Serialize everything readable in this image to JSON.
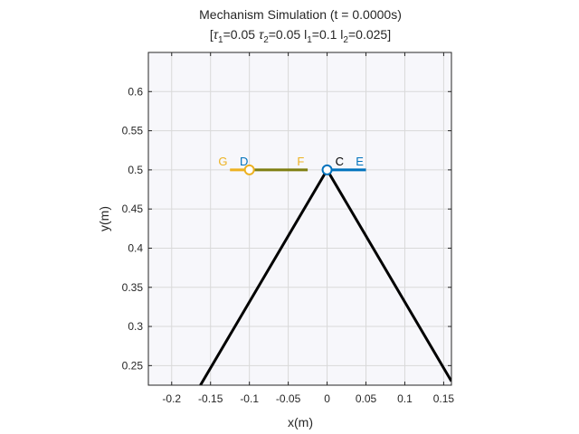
{
  "colors": {
    "link_black": "#000000",
    "link_blue": "#0072BD",
    "link_yellow": "#EDB120",
    "link_olive": "#7E7E10",
    "grid": "#d9d9d9",
    "axis": "#262626",
    "background": "#f7f7fb"
  },
  "chart_data": {
    "type": "line",
    "title": "Mechanism Simulation (t = 0.0000s)",
    "subtitle": {
      "open": "[",
      "tau1_label": "τ",
      "tau1_sub": "1",
      "tau1_val": "=0.05 ",
      "tau2_label": "τ",
      "tau2_sub": "2",
      "tau2_val": "=0.05 ",
      "l1_label": "l",
      "l1_sub": "1",
      "l1_val": "=0.1 ",
      "l2_label": "l",
      "l2_sub": "2",
      "l2_val": "=0.025]"
    },
    "xlabel": "x(m)",
    "ylabel": "y(m)",
    "xlim": [
      -0.23,
      0.16
    ],
    "ylim": [
      0.225,
      0.65
    ],
    "xticks": [
      -0.2,
      -0.15,
      -0.1,
      -0.05,
      0,
      0.05,
      0.1,
      0.15
    ],
    "xtick_labels": [
      "-0.2",
      "-0.15",
      "-0.1",
      "-0.05",
      "0",
      "0.05",
      "0.1",
      "0.15"
    ],
    "yticks": [
      0.25,
      0.3,
      0.35,
      0.4,
      0.45,
      0.5,
      0.55,
      0.6
    ],
    "ytick_labels": [
      "0.25",
      "0.3",
      "0.35",
      "0.4",
      "0.45",
      "0.5",
      "0.55",
      "0.6"
    ],
    "grid": true,
    "series": [
      {
        "key": "leg-left",
        "color": "#000000",
        "x": [
          -0.163,
          0.0
        ],
        "y": [
          0.225,
          0.5
        ]
      },
      {
        "key": "leg-right",
        "color": "#000000",
        "x": [
          0.0,
          0.16
        ],
        "y": [
          0.5,
          0.23
        ]
      },
      {
        "key": "link-CE",
        "color": "#0072BD",
        "x": [
          0.0,
          0.05
        ],
        "y": [
          0.5,
          0.5
        ]
      },
      {
        "key": "link-GD",
        "color": "#EDB120",
        "x": [
          -0.125,
          -0.1
        ],
        "y": [
          0.5,
          0.5
        ]
      },
      {
        "key": "link-DF",
        "color": "#7E7E10",
        "x": [
          -0.1,
          -0.025
        ],
        "y": [
          0.5,
          0.5
        ]
      }
    ],
    "joints": [
      {
        "key": "joint-C",
        "x": 0.0,
        "y": 0.5,
        "color": "#0072BD"
      },
      {
        "key": "joint-D",
        "x": -0.1,
        "y": 0.5,
        "color": "#EDB120"
      }
    ],
    "point_labels": [
      {
        "text": "G",
        "x": -0.134,
        "y": 0.51,
        "color": "#EDB120"
      },
      {
        "text": "D",
        "x": -0.107,
        "y": 0.51,
        "color": "#0072BD"
      },
      {
        "text": "F",
        "x": -0.034,
        "y": 0.51,
        "color": "#EDB120"
      },
      {
        "text": "C",
        "x": 0.016,
        "y": 0.51,
        "color": "#000000"
      },
      {
        "text": "E",
        "x": 0.042,
        "y": 0.51,
        "color": "#0072BD"
      }
    ]
  }
}
